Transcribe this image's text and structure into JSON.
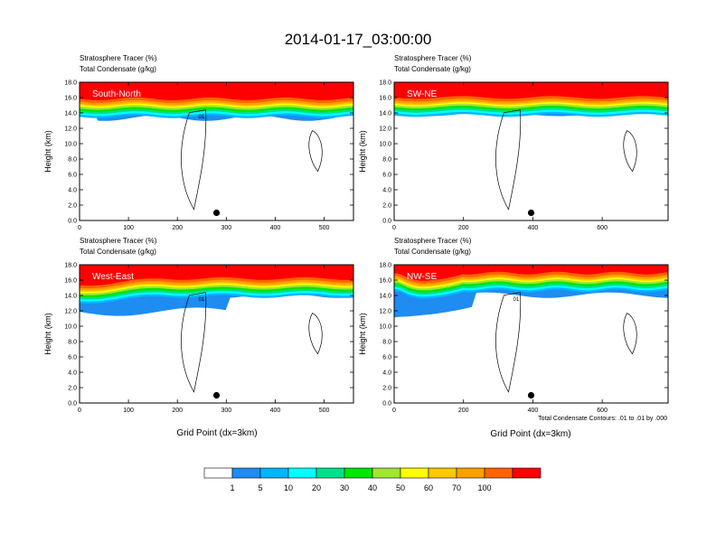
{
  "figure_title": "2014-01-17_03:00:00",
  "footnote": "Total Condensate Contours: .01 to .01 by .000",
  "x_axis_label": "Grid Point (dx=3km)",
  "colorbar": {
    "labels": [
      "1",
      "5",
      "10",
      "20",
      "30",
      "40",
      "50",
      "60",
      "70",
      "100"
    ],
    "colors": [
      "#ffffff",
      "#1e8cf0",
      "#00b4ff",
      "#00ffff",
      "#00e08c",
      "#00e600",
      "#a0e632",
      "#ffff00",
      "#ffc800",
      "#ffa000",
      "#ff6400",
      "#ff0000"
    ]
  },
  "chart_data": [
    {
      "type": "heatmap",
      "name": "South-North",
      "title_line1": "Stratosphere Tracer   (%)",
      "title_line2": "Total Condensate   (g/kg)",
      "panel_label": "South-North",
      "ylabel": "Height (km)",
      "xlabel": "",
      "xlim": [
        0,
        560
      ],
      "ylim": [
        0,
        18
      ],
      "xticks": [
        "0",
        "100",
        "200",
        "300",
        "400",
        "500"
      ],
      "xtick_values": [
        0,
        100,
        200,
        300,
        400,
        500
      ],
      "yticks": [
        "0.0",
        "2.0",
        "4.0",
        "6.0",
        "8.0",
        "10.0",
        "12.0",
        "14.0",
        "16.0",
        "18.0"
      ],
      "marker": {
        "x": 280,
        "y": 1.0
      },
      "contour_label": "01"
    },
    {
      "type": "heatmap",
      "name": "SW-NE",
      "title_line1": "Stratosphere Tracer   (%)",
      "title_line2": "Total Condensate   (g/kg)",
      "panel_label": "SW-NE",
      "ylabel": "Height (km)",
      "xlabel": "",
      "xlim": [
        0,
        790
      ],
      "ylim": [
        0,
        18
      ],
      "xticks": [
        "0",
        "200",
        "400",
        "600"
      ],
      "xtick_values": [
        0,
        200,
        400,
        600
      ],
      "yticks": [
        "0.0",
        "2.0",
        "4.0",
        "6.0",
        "8.0",
        "10.0",
        "12.0",
        "14.0",
        "16.0",
        "18.0"
      ],
      "marker": {
        "x": 395,
        "y": 1.0
      },
      "contour_label": ""
    },
    {
      "type": "heatmap",
      "name": "West-East",
      "title_line1": "Stratosphere Tracer   (%)",
      "title_line2": "Total Condensate   (g/kg)",
      "panel_label": "West-East",
      "ylabel": "Height (km)",
      "xlabel": "Grid Point (dx=3km)",
      "xlim": [
        0,
        560
      ],
      "ylim": [
        0,
        18
      ],
      "xticks": [
        "0",
        "100",
        "200",
        "300",
        "400",
        "500"
      ],
      "xtick_values": [
        0,
        100,
        200,
        300,
        400,
        500
      ],
      "yticks": [
        "0.0",
        "2.0",
        "4.0",
        "6.0",
        "8.0",
        "10.0",
        "12.0",
        "14.0",
        "16.0",
        "18.0"
      ],
      "marker": {
        "x": 280,
        "y": 1.0
      },
      "contour_label": "01"
    },
    {
      "type": "heatmap",
      "name": "NW-SE",
      "title_line1": "Stratosphere Tracer   (%)",
      "title_line2": "Total Condensate   (g/kg)",
      "panel_label": "NW-SE",
      "ylabel": "Height (km)",
      "xlabel": "Grid Point (dx=3km)",
      "xlim": [
        0,
        790
      ],
      "ylim": [
        0,
        18
      ],
      "xticks": [
        "0",
        "200",
        "400",
        "600"
      ],
      "xtick_values": [
        0,
        200,
        400,
        600
      ],
      "yticks": [
        "0.0",
        "2.0",
        "4.0",
        "6.0",
        "8.0",
        "10.0",
        "12.0",
        "14.0",
        "16.0",
        "18.0"
      ],
      "marker": {
        "x": 395,
        "y": 1.0
      },
      "contour_label": "01"
    }
  ]
}
